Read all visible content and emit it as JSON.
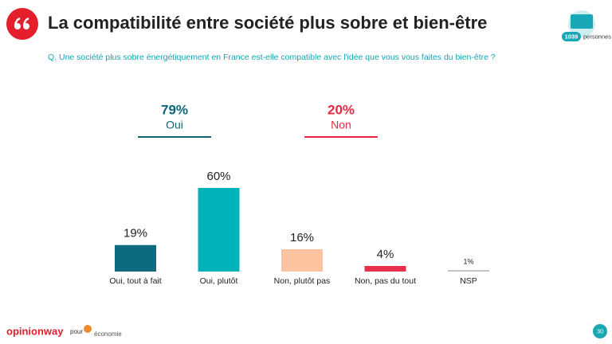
{
  "header": {
    "title": "La compatibilité entre société plus sobre et bien-être",
    "question": "Q. Une société plus sobre énergétiquement en France est-elle compatible avec l'idée que vous vous faites du bien-être ?",
    "sample_count": "1039",
    "sample_unit": "personnes"
  },
  "summary": [
    {
      "value_label": "79%",
      "name": "Oui",
      "color": "#0e6479"
    },
    {
      "value_label": "20%",
      "name": "Non",
      "color": "#e8283f"
    }
  ],
  "chart_data": {
    "type": "bar",
    "categories": [
      "Oui, tout à fait",
      "Oui, plutôt",
      "Non, plutôt pas",
      "Non, pas du tout",
      "NSP"
    ],
    "values": [
      19,
      60,
      16,
      4,
      1
    ],
    "value_labels": [
      "19%",
      "60%",
      "16%",
      "4%",
      "1%"
    ],
    "colors": [
      "#0e6a7e",
      "#00b2ba",
      "#fcc3a0",
      "#e8304a",
      "#bdbdbd"
    ]
  },
  "footer": {
    "brand": "opinionway",
    "for": "pour",
    "partner": "économie",
    "page": "30"
  }
}
